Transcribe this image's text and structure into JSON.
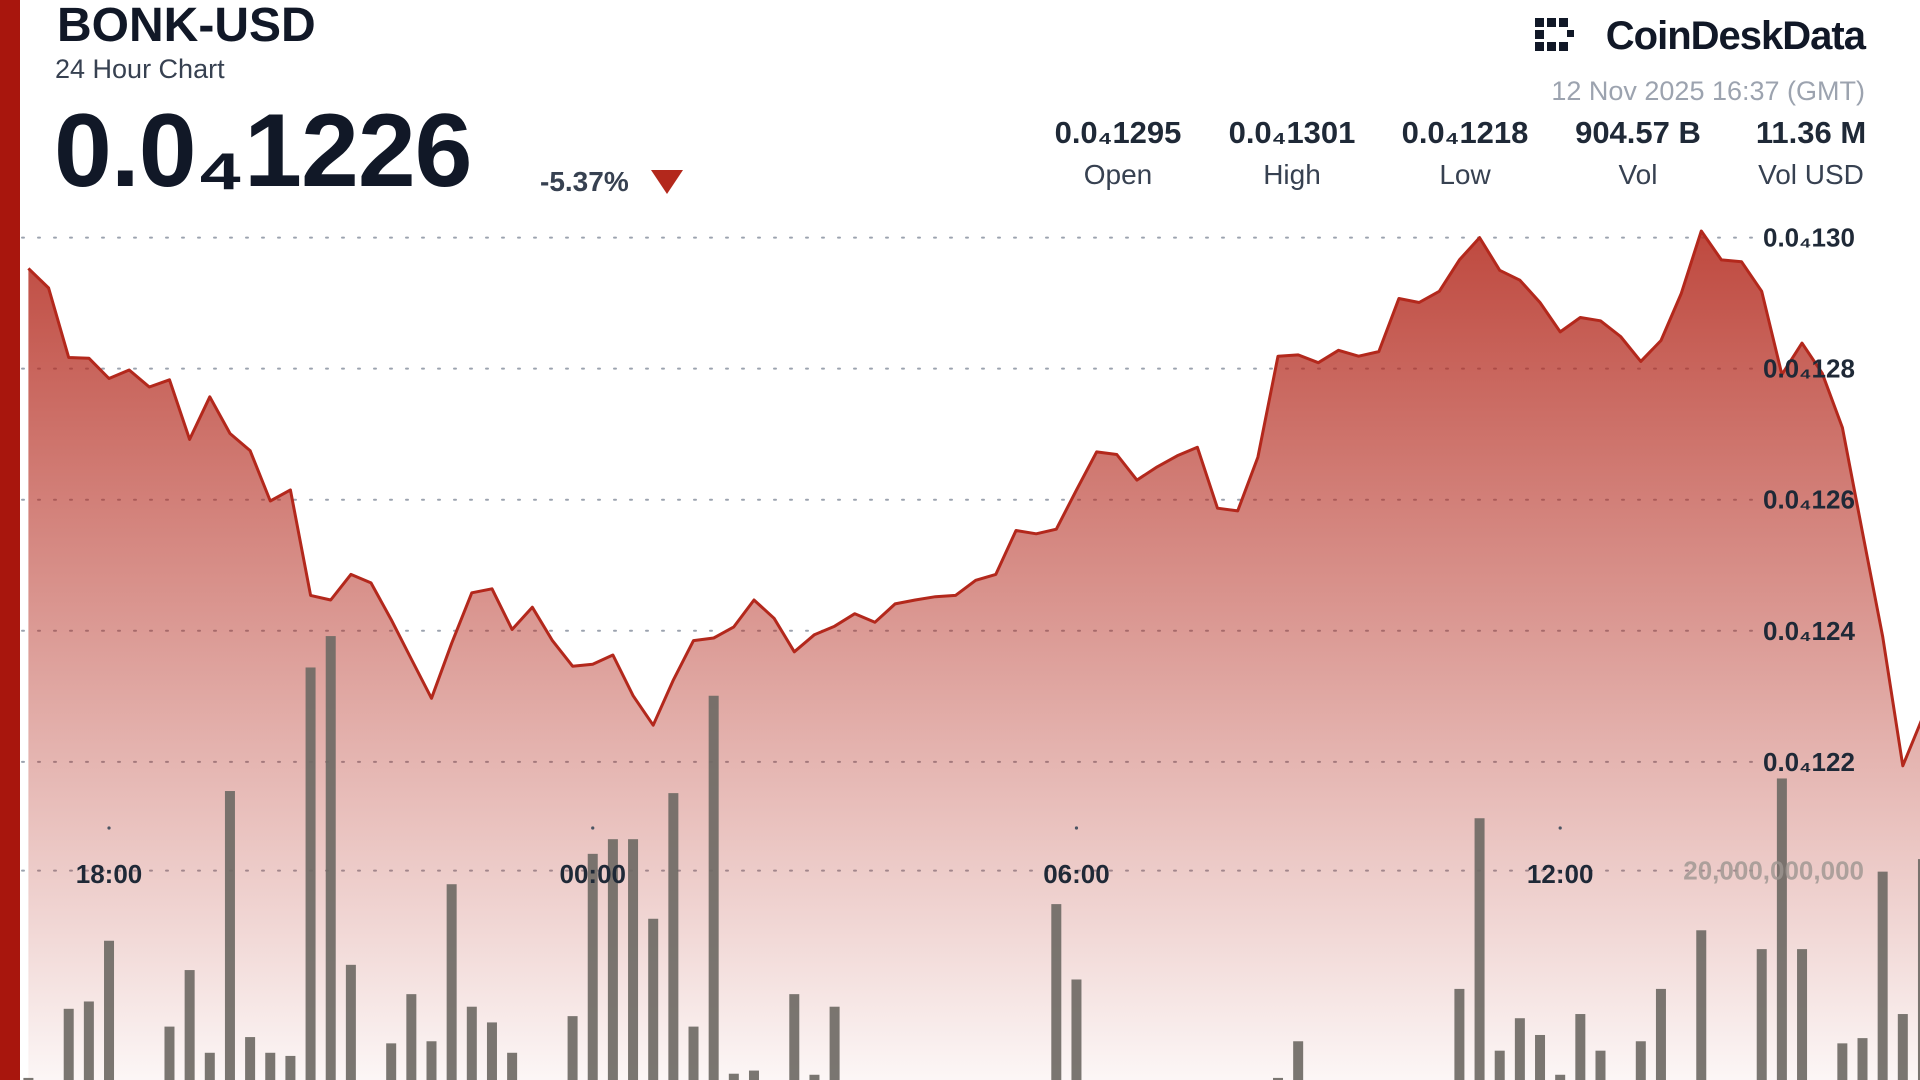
{
  "header": {
    "symbol": "BONK-USD",
    "subtitle": "24 Hour Chart",
    "price": "0.0₄1226",
    "change": "-5.37%",
    "brand": "CoinDeskData",
    "timestamp": "12 Nov 2025 16:37 (GMT)",
    "stats": [
      {
        "value": "0.0₄1295",
        "label": "Open"
      },
      {
        "value": "0.0₄1301",
        "label": "High"
      },
      {
        "value": "0.0₄1218",
        "label": "Low"
      },
      {
        "value": "904.57 B",
        "label": "Vol"
      },
      {
        "value": "11.36 M",
        "label": "Vol USD"
      }
    ]
  },
  "chart_data": {
    "type": "area",
    "categories": [
      null,
      null,
      null,
      null,
      "18:00",
      null,
      null,
      null,
      null,
      null,
      null,
      null,
      null,
      null,
      null,
      null,
      null,
      null,
      null,
      null,
      null,
      null,
      null,
      null,
      null,
      null,
      null,
      null,
      "00:00",
      null,
      null,
      null,
      null,
      null,
      null,
      null,
      null,
      null,
      null,
      null,
      null,
      null,
      null,
      null,
      null,
      null,
      null,
      null,
      null,
      null,
      null,
      null,
      "06:00",
      null,
      null,
      null,
      null,
      null,
      null,
      null,
      null,
      null,
      null,
      null,
      null,
      null,
      null,
      null,
      null,
      null,
      null,
      null,
      null,
      null,
      null,
      null,
      "12:00",
      null,
      null,
      null,
      null,
      null,
      null,
      null,
      null,
      null,
      null,
      null,
      null,
      null,
      null,
      null,
      null,
      null,
      null
    ],
    "series": [
      {
        "color": "#b3281c",
        "values": [
          1.2953e-05,
          1.2923e-05,
          1.2817e-05,
          1.2816e-05,
          1.2785e-05,
          1.2798e-05,
          1.2772e-05,
          1.2783e-05,
          1.2692e-05,
          1.2757e-05,
          1.2701e-05,
          1.2675e-05,
          1.2598e-05,
          1.2615e-05,
          1.2454e-05,
          1.2447e-05,
          1.2486e-05,
          1.2473e-05,
          1.2417e-05,
          1.2357e-05,
          1.2297e-05,
          1.2381e-05,
          1.2458e-05,
          1.2464e-05,
          1.2402e-05,
          1.2436e-05,
          1.2385e-05,
          1.2346e-05,
          1.2349e-05,
          1.2363e-05,
          1.2301e-05,
          1.2256e-05,
          1.2325e-05,
          1.2385e-05,
          1.2389e-05,
          1.2406e-05,
          1.2447e-05,
          1.2419e-05,
          1.2368e-05,
          1.2394e-05,
          1.2407e-05,
          1.2426e-05,
          1.2413e-05,
          1.2441e-05,
          1.2447e-05,
          1.2452e-05,
          1.2454e-05,
          1.2477e-05,
          1.2486e-05,
          1.2553e-05,
          1.2548e-05,
          1.2555e-05,
          1.2615e-05,
          1.2673e-05,
          1.2669e-05,
          1.263e-05,
          1.265e-05,
          1.2667e-05,
          1.268e-05,
          1.2587e-05,
          1.2583e-05,
          1.2665e-05,
          1.2819e-05,
          1.2821e-05,
          1.2809e-05,
          1.2828e-05,
          1.2819e-05,
          1.2826e-05,
          1.2907e-05,
          1.2901e-05,
          1.2918e-05,
          1.2966e-05,
          1.3e-05,
          1.295e-05,
          1.2935e-05,
          1.2901e-05,
          1.2856e-05,
          1.2878e-05,
          1.2873e-05,
          1.2849e-05,
          1.2811e-05,
          1.2843e-05,
          1.2914e-05,
          1.301e-05,
          1.2966e-05,
          1.2963e-05,
          1.2918e-05,
          1.2791e-05,
          1.2839e-05,
          1.2793e-05,
          1.271e-05,
          1.255e-05,
          1.2391e-05,
          1.2194e-05,
          1.2269e-05
        ]
      },
      {
        "type": "bar",
        "axis": "y2",
        "color": "#6f6a65",
        "values": [
          200000000,
          0,
          6800000000,
          7500000000,
          13300000000,
          0,
          0,
          5100000000,
          10500000000,
          2600000000,
          27600000000,
          4100000000,
          2600000000,
          2300000000,
          39400000000,
          42400000000,
          11000000000,
          0,
          3500000000,
          8200000000,
          3700000000,
          18700000000,
          7000000000,
          5500000000,
          2600000000,
          0,
          0,
          6100000000,
          21600000000,
          23000000000,
          23000000000,
          15400000000,
          27400000000,
          5100000000,
          36700000000,
          600000000,
          900000000,
          0,
          8200000000,
          500000000,
          7000000000,
          0,
          0,
          0,
          0,
          0,
          0,
          0,
          0,
          0,
          0,
          16800000000,
          9600000000,
          0,
          0,
          0,
          0,
          0,
          0,
          0,
          0,
          0,
          200000000,
          3700000000,
          0,
          0,
          0,
          0,
          0,
          0,
          0,
          8700000000,
          25000000000,
          2800000000,
          5900000000,
          4300000000,
          500000000,
          6300000000,
          2800000000,
          0,
          3700000000,
          8700000000,
          0,
          14300000000,
          0,
          0,
          12500000000,
          28800000000,
          12500000000,
          0,
          3500000000,
          4000000000,
          19900000000,
          6300000000,
          21100000000
        ]
      }
    ],
    "ylim": [
      1.18e-05,
      1.32e-05
    ],
    "yticks": [
      {
        "value": 1.3e-05,
        "label": "0.0₄130"
      },
      {
        "value": 1.28e-05,
        "label": "0.0₄128"
      },
      {
        "value": 1.26e-05,
        "label": "0.0₄126"
      },
      {
        "value": 1.24e-05,
        "label": "0.0₄124"
      },
      {
        "value": 1.22e-05,
        "label": "0.0₄122"
      }
    ],
    "y2lim": [
      0,
      50000000000
    ],
    "y2ticks": [
      {
        "value": 20000000000,
        "label": "20,000,000,000"
      }
    ],
    "grid": true
  }
}
